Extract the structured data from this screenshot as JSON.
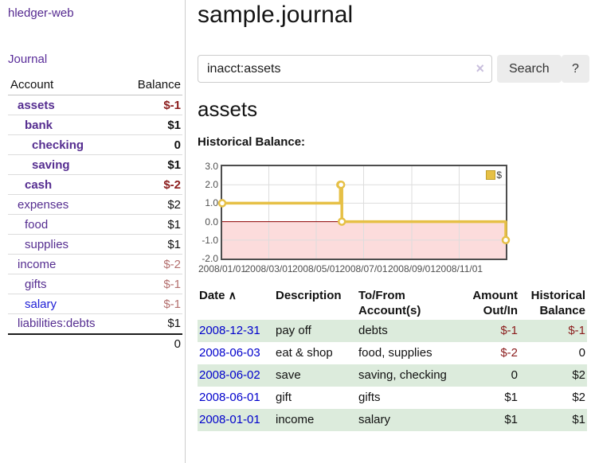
{
  "sidebar": {
    "brand": "hledger-web",
    "journal_link": "Journal",
    "table_headers": {
      "account": "Account",
      "balance": "Balance"
    },
    "accounts": [
      {
        "name": "assets",
        "depth": 0,
        "bold": true,
        "balance": "$-1",
        "balance_style": "neg-strong",
        "link_color": "purple"
      },
      {
        "name": "bank",
        "depth": 1,
        "bold": true,
        "balance": "$1",
        "balance_style": "normal",
        "link_color": "purple"
      },
      {
        "name": "checking",
        "depth": 2,
        "bold": true,
        "balance": "0",
        "balance_style": "normal",
        "link_color": "purple"
      },
      {
        "name": "saving",
        "depth": 2,
        "bold": true,
        "balance": "$1",
        "balance_style": "normal",
        "link_color": "purple"
      },
      {
        "name": "cash",
        "depth": 1,
        "bold": true,
        "balance": "$-2",
        "balance_style": "neg-strong",
        "link_color": "purple"
      },
      {
        "name": "expenses",
        "depth": 0,
        "bold": false,
        "balance": "$2",
        "balance_style": "normal",
        "link_color": "purple"
      },
      {
        "name": "food",
        "depth": 1,
        "bold": false,
        "balance": "$1",
        "balance_style": "normal",
        "link_color": "purple"
      },
      {
        "name": "supplies",
        "depth": 1,
        "bold": false,
        "balance": "$1",
        "balance_style": "normal",
        "link_color": "purple"
      },
      {
        "name": "income",
        "depth": 0,
        "bold": false,
        "balance": "$-2",
        "balance_style": "neg-soft",
        "link_color": "purple"
      },
      {
        "name": "gifts",
        "depth": 1,
        "bold": false,
        "balance": "$-1",
        "balance_style": "neg-soft",
        "link_color": "purple"
      },
      {
        "name": "salary",
        "depth": 1,
        "bold": false,
        "balance": "$-1",
        "balance_style": "neg-soft",
        "link_color": "blue"
      },
      {
        "name": "liabilities:debts",
        "depth": 0,
        "bold": false,
        "balance": "$1",
        "balance_style": "normal",
        "link_color": "purple"
      }
    ],
    "total": "0"
  },
  "header": {
    "title": "sample.journal"
  },
  "search": {
    "value": "inacct:assets",
    "clear_icon": "×",
    "search_label": "Search",
    "help_label": "?"
  },
  "account_page": {
    "title": "assets",
    "chart_label": "Historical Balance:"
  },
  "chart_data": {
    "type": "line",
    "step": true,
    "title": "Historical Balance:",
    "legend": "$",
    "legend_position": "top-right",
    "grid": true,
    "x_start": "2008-01-01",
    "x_end": "2008-12-31",
    "x_ticks": [
      "2008/01/01",
      "2008/03/01",
      "2008/05/01",
      "2008/07/01",
      "2008/09/01",
      "2008/11/01"
    ],
    "y_ticks": [
      3.0,
      2.0,
      1.0,
      0.0,
      -1.0,
      -2.0
    ],
    "ylim": [
      -2,
      3
    ],
    "series": [
      {
        "name": "$",
        "points": [
          {
            "date": "2008-01-01",
            "value": 1
          },
          {
            "date": "2008-06-01",
            "value": 2
          },
          {
            "date": "2008-06-02",
            "value": 2
          },
          {
            "date": "2008-06-03",
            "value": 0
          },
          {
            "date": "2008-12-31",
            "value": -1
          }
        ]
      }
    ],
    "colors": {
      "line": "#e6c046",
      "marker_fill": "#ffffff",
      "negative_region": "#fcdcdc",
      "zero_line": "#8b0000",
      "grid": "#dddddd",
      "plot_border": "#4d4d4d"
    }
  },
  "journal_table": {
    "sort_icon": "∧",
    "headers": [
      "Date",
      "Description",
      "To/From Account(s)",
      "Amount Out/In",
      "Historical Balance"
    ],
    "rows": [
      {
        "date": "2008-12-31",
        "description": "pay off",
        "accounts": "debts",
        "amount": "$-1",
        "amount_negative": true,
        "balance": "$-1",
        "balance_negative": true,
        "stripe": true
      },
      {
        "date": "2008-06-03",
        "description": "eat & shop",
        "accounts": "food, supplies",
        "amount": "$-2",
        "amount_negative": true,
        "balance": "0",
        "balance_negative": false,
        "stripe": false
      },
      {
        "date": "2008-06-02",
        "description": "save",
        "accounts": "saving, checking",
        "amount": "0",
        "amount_negative": false,
        "balance": "$2",
        "balance_negative": false,
        "stripe": true
      },
      {
        "date": "2008-06-01",
        "description": "gift",
        "accounts": "gifts",
        "amount": "$1",
        "amount_negative": false,
        "balance": "$2",
        "balance_negative": false,
        "stripe": false
      },
      {
        "date": "2008-01-01",
        "description": "income",
        "accounts": "salary",
        "amount": "$1",
        "amount_negative": false,
        "balance": "$1",
        "balance_negative": false,
        "stripe": true
      }
    ]
  },
  "colors": {
    "link_purple": "#552d90",
    "link_blue": "#2020d6",
    "date_link_blue": "#0000cc",
    "negative_strong": "#8b1c1c",
    "negative_soft": "#b4706f",
    "row_stripe_green": "#dcebdc",
    "chart_gold": "#e6c046"
  }
}
